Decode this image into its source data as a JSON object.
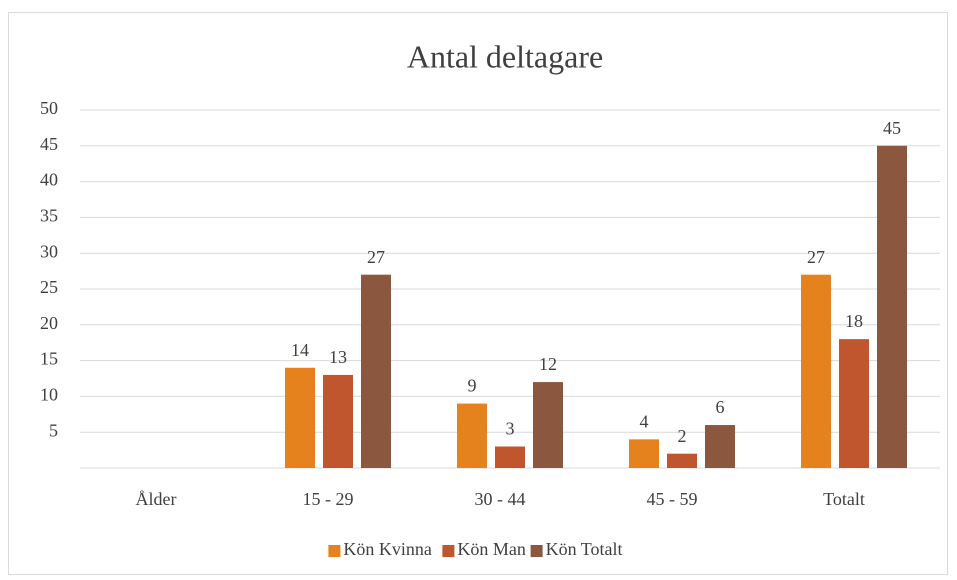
{
  "chart_data": {
    "type": "bar",
    "title": "Antal deltagare",
    "categories": [
      "Ålder",
      "15 - 29",
      "30 - 44",
      "45 - 59",
      "Totalt"
    ],
    "series": [
      {
        "name": "Kön Kvinna",
        "color": "#e6821e",
        "values": [
          null,
          14,
          9,
          4,
          27
        ]
      },
      {
        "name": "Kön Man",
        "color": "#c0562e",
        "values": [
          null,
          13,
          3,
          2,
          18
        ]
      },
      {
        "name": "Kön Totalt",
        "color": "#8b573f",
        "values": [
          null,
          27,
          12,
          6,
          45
        ]
      }
    ],
    "ylim": [
      0,
      50
    ],
    "yticks": [
      5,
      10,
      15,
      20,
      25,
      30,
      35,
      40,
      45,
      50
    ],
    "grid": true,
    "legend": "bottom"
  }
}
